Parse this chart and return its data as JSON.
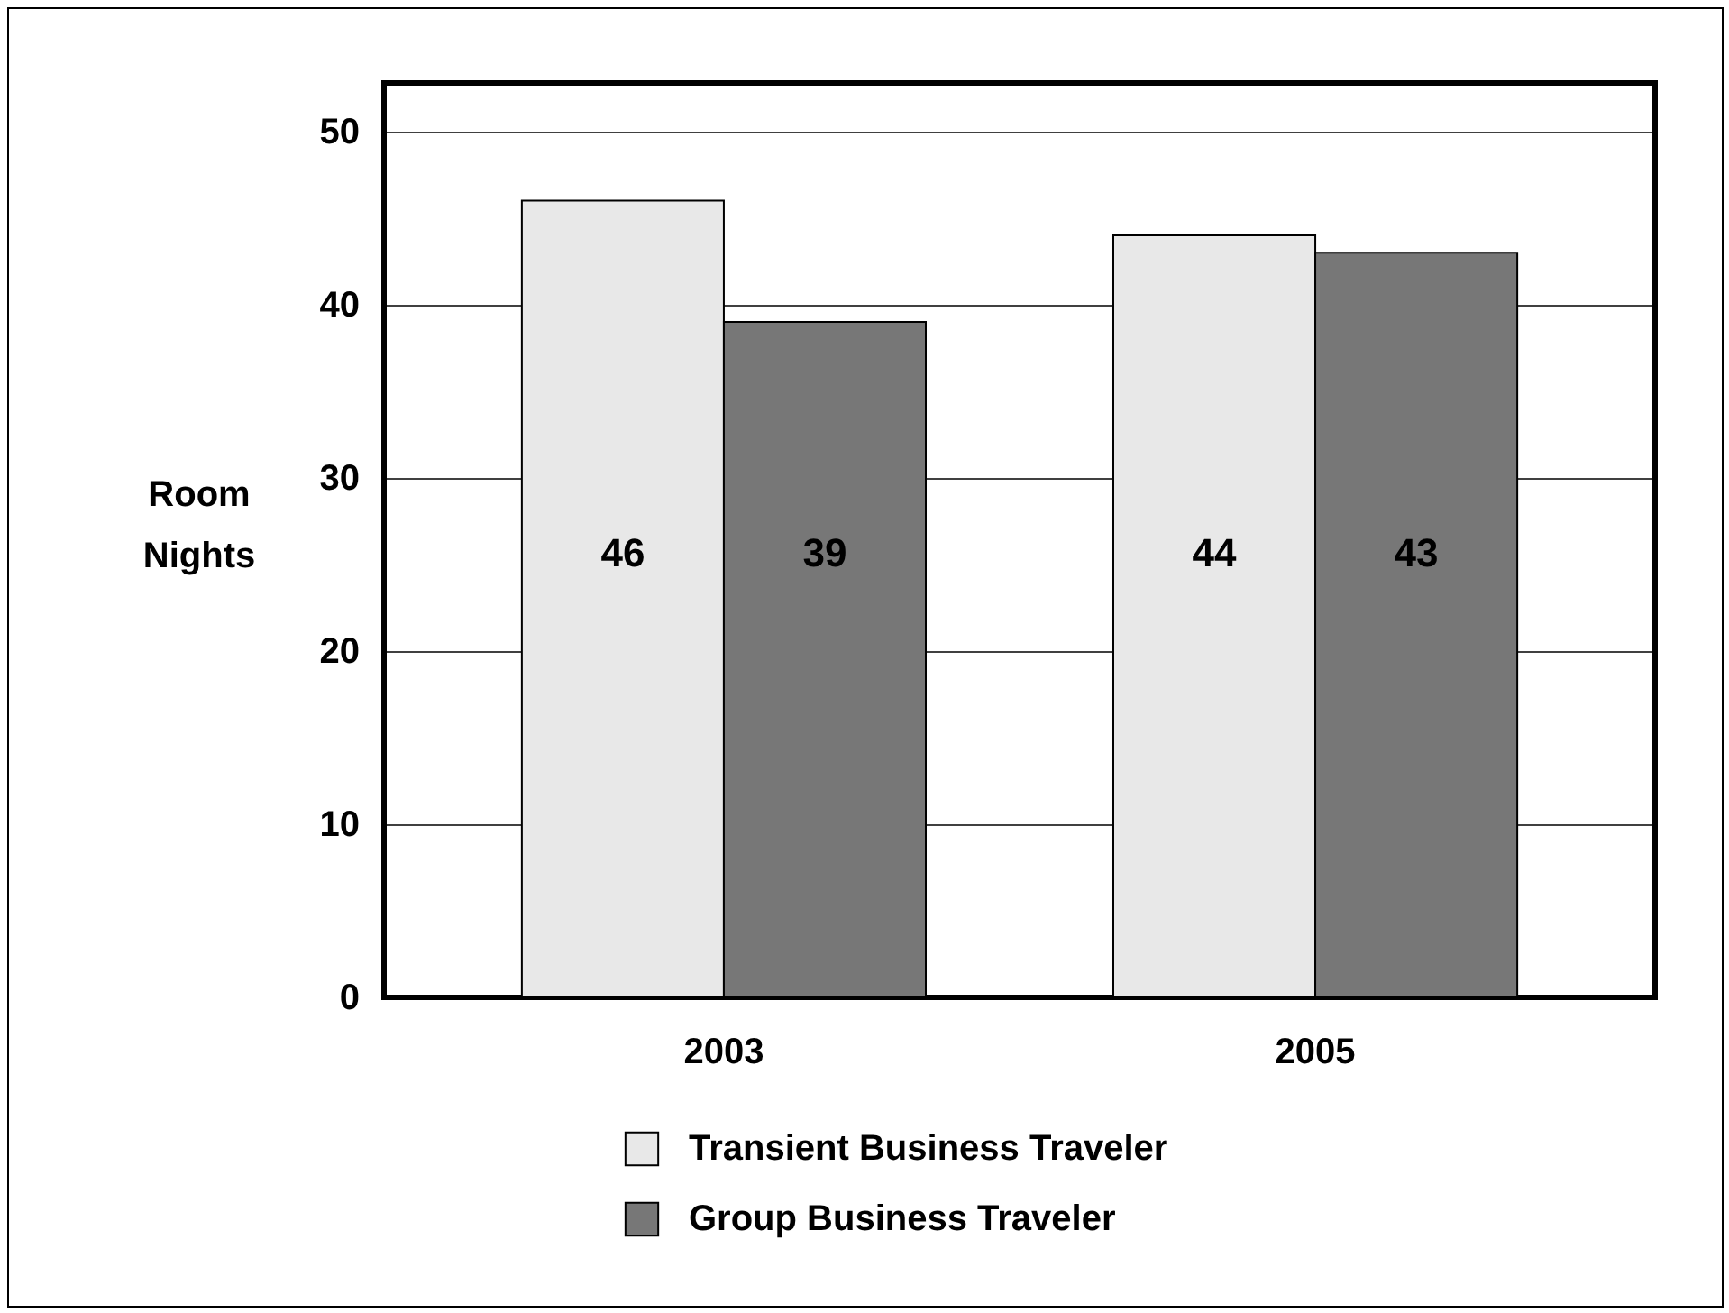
{
  "chart_data": {
    "type": "bar",
    "ylabel": "Room Nights",
    "categories": [
      "2003",
      "2005"
    ],
    "series": [
      {
        "name": "Transient Business Traveler",
        "color": "#e8e8e8",
        "values": [
          46,
          44
        ]
      },
      {
        "name": "Group Business Traveler",
        "color": "#777777",
        "values": [
          39,
          43
        ]
      }
    ],
    "ylim": [
      0,
      52.8
    ],
    "yticks": [
      0,
      10,
      20,
      30,
      40,
      50
    ],
    "grid": "y",
    "data_labels": true,
    "legend": "bottom"
  }
}
